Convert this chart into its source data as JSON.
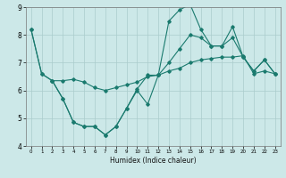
{
  "line1": {
    "x": [
      0,
      1,
      2,
      3,
      4,
      5,
      6,
      7,
      8,
      9,
      10,
      11,
      12,
      13,
      14,
      15,
      16,
      17,
      18,
      19,
      20,
      21,
      22,
      23
    ],
    "y": [
      8.2,
      6.6,
      6.35,
      5.7,
      4.85,
      4.7,
      4.7,
      4.4,
      4.7,
      5.35,
      6.0,
      5.5,
      6.55,
      8.5,
      8.9,
      9.1,
      8.2,
      7.6,
      7.6,
      8.3,
      7.2,
      6.7,
      7.1,
      6.6
    ]
  },
  "line2": {
    "x": [
      0,
      1,
      2,
      3,
      4,
      5,
      6,
      7,
      8,
      9,
      10,
      11,
      12,
      13,
      14,
      15,
      16,
      17,
      18,
      19,
      20,
      21,
      22,
      23
    ],
    "y": [
      8.2,
      6.6,
      6.35,
      6.35,
      6.4,
      6.3,
      6.1,
      6.0,
      6.1,
      6.2,
      6.3,
      6.5,
      6.55,
      6.7,
      6.8,
      7.0,
      7.1,
      7.15,
      7.2,
      7.2,
      7.25,
      6.6,
      6.7,
      6.6
    ]
  },
  "line3": {
    "x": [
      2,
      3,
      4,
      5,
      6,
      7,
      8,
      9,
      10,
      11,
      12,
      13,
      14,
      15,
      16,
      17,
      18,
      19,
      20,
      21,
      22,
      23
    ],
    "y": [
      6.35,
      5.7,
      4.85,
      4.7,
      4.7,
      4.4,
      4.7,
      5.35,
      6.05,
      6.55,
      6.55,
      7.0,
      7.5,
      8.0,
      7.9,
      7.6,
      7.6,
      7.9,
      7.2,
      6.7,
      7.1,
      6.6
    ]
  },
  "color": "#1a7a6e",
  "bg_color": "#cce8e8",
  "grid_color": "#aacccc",
  "xlim": [
    -0.5,
    23.5
  ],
  "ylim": [
    4,
    9
  ],
  "xticks": [
    0,
    1,
    2,
    3,
    4,
    5,
    6,
    7,
    8,
    9,
    10,
    11,
    12,
    13,
    14,
    15,
    16,
    17,
    18,
    19,
    20,
    21,
    22,
    23
  ],
  "yticks": [
    4,
    5,
    6,
    7,
    8,
    9
  ],
  "xlabel": "Humidex (Indice chaleur)",
  "marker": "D",
  "markersize": 1.8,
  "linewidth": 0.8
}
